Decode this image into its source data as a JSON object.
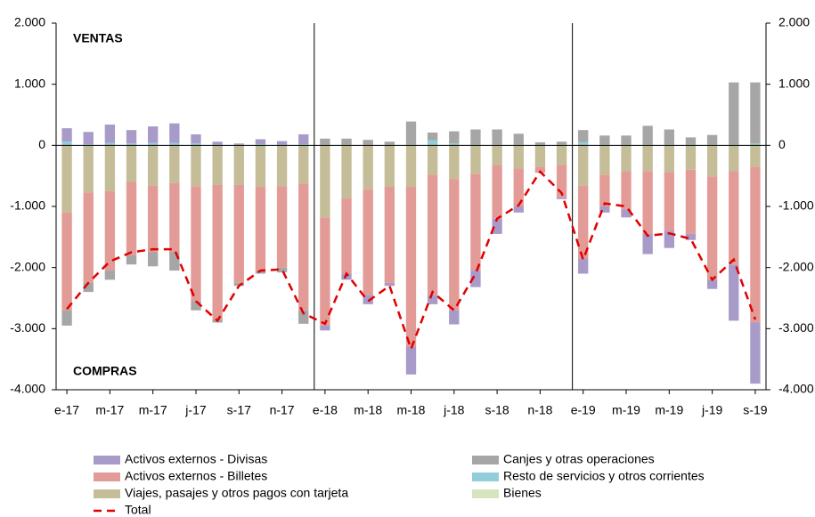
{
  "chart_data": {
    "type": "bar",
    "annotations": [
      "VENTAS",
      "COMPRAS"
    ],
    "categories": [
      "e-17",
      null,
      "m-17",
      null,
      "m-17",
      null,
      "j-17",
      null,
      "s-17",
      null,
      "n-17",
      null,
      "e-18",
      null,
      "m-18",
      null,
      "m-18",
      null,
      "j-18",
      null,
      "s-18",
      null,
      "n-18",
      null,
      "e-19",
      null,
      "m-19",
      null,
      "m-19",
      null,
      "j-19",
      null,
      "s-19"
    ],
    "series": [
      {
        "name": "Activos externos - Divisas",
        "kind": "bar",
        "color": "#a99bc9",
        "values": [
          220,
          200,
          300,
          220,
          270,
          320,
          150,
          50,
          20,
          80,
          60,
          160,
          -80,
          -100,
          -150,
          -50,
          -450,
          -150,
          -230,
          -270,
          -250,
          -100,
          0,
          -30,
          -250,
          -100,
          -130,
          -330,
          -280,
          -100,
          -150,
          -920,
          -1000
        ]
      },
      {
        "name": "Canjes y otras operaciones",
        "kind": "bar",
        "color": "#a6a6a6",
        "values": [
          -250,
          -150,
          -150,
          -150,
          -230,
          -300,
          -150,
          -50,
          -50,
          -50,
          -80,
          -220,
          100,
          100,
          80,
          50,
          380,
          130,
          200,
          250,
          250,
          180,
          40,
          50,
          200,
          150,
          150,
          310,
          250,
          120,
          160,
          1020,
          1000
        ]
      },
      {
        "name": "Activos externos - Billetes",
        "kind": "bar",
        "color": "#e39b97",
        "values": [
          -1600,
          -1480,
          -1300,
          -1200,
          -1090,
          -1130,
          -1880,
          -2200,
          -1600,
          -1370,
          -1330,
          -2070,
          -1770,
          -1230,
          -1730,
          -1570,
          -2620,
          -1970,
          -2150,
          -1580,
          -870,
          -620,
          -100,
          -530,
          -1190,
          -520,
          -630,
          -1030,
          -960,
          -1050,
          -1690,
          -1530,
          -2550
        ]
      },
      {
        "name": "Resto de servicios y otros corrientes",
        "kind": "bar",
        "color": "#92cddc",
        "values": [
          60,
          20,
          40,
          30,
          40,
          40,
          30,
          10,
          10,
          20,
          10,
          20,
          10,
          10,
          10,
          10,
          10,
          80,
          30,
          10,
          10,
          10,
          10,
          10,
          50,
          10,
          10,
          10,
          10,
          10,
          10,
          10,
          30
        ]
      },
      {
        "name": "Viajes, pasajes y otros pagos con tarjeta",
        "kind": "bar",
        "color": "#c4bd97",
        "values": [
          -1100,
          -770,
          -750,
          -600,
          -660,
          -620,
          -670,
          -650,
          -650,
          -680,
          -670,
          -630,
          -1180,
          -870,
          -720,
          -680,
          -680,
          -480,
          -550,
          -470,
          -330,
          -380,
          -350,
          -320,
          -660,
          -480,
          -420,
          -420,
          -440,
          -400,
          -510,
          -420,
          -350
        ]
      },
      {
        "name": "Bienes",
        "kind": "bar",
        "color": "#d7e4bd",
        "values": [
          0,
          0,
          0,
          0,
          0,
          0,
          0,
          0,
          0,
          0,
          0,
          0,
          0,
          0,
          0,
          0,
          0,
          0,
          0,
          0,
          0,
          0,
          0,
          0,
          0,
          0,
          0,
          0,
          0,
          0,
          0,
          0,
          0
        ]
      },
      {
        "name": "Total",
        "kind": "line",
        "color": "#e00000",
        "values": [
          -2680,
          -2250,
          -1900,
          -1750,
          -1700,
          -1700,
          -2550,
          -2870,
          -2300,
          -2050,
          -2030,
          -2750,
          -2920,
          -2100,
          -2550,
          -2300,
          -3330,
          -2400,
          -2700,
          -2100,
          -1200,
          -980,
          -430,
          -780,
          -1870,
          -950,
          -1000,
          -1480,
          -1440,
          -1530,
          -2200,
          -1870,
          -2850
        ]
      }
    ],
    "ylim": [
      -4000,
      2000
    ],
    "yticks": [
      {
        "value": 2000,
        "label": "2.000"
      },
      {
        "value": 1000,
        "label": "1.000"
      },
      0,
      {
        "value": -1000,
        "label": "-1.000"
      },
      {
        "value": -2000,
        "label": "-2.000"
      },
      {
        "value": -3000,
        "label": "-3.000"
      },
      {
        "value": -4000,
        "label": "-4.000"
      }
    ],
    "y2lim": [
      -4000,
      2000
    ],
    "y2ticks": [
      {
        "value": 2000,
        "label": "2.000"
      },
      {
        "value": 1000,
        "label": "1.000"
      },
      0,
      {
        "value": -1000,
        "label": "-1.000"
      },
      {
        "value": -2000,
        "label": "-2.000"
      },
      {
        "value": -3000,
        "label": "-3.000"
      },
      {
        "value": -4000,
        "label": "-4.000"
      }
    ],
    "grid": false,
    "legend": "bottom"
  }
}
